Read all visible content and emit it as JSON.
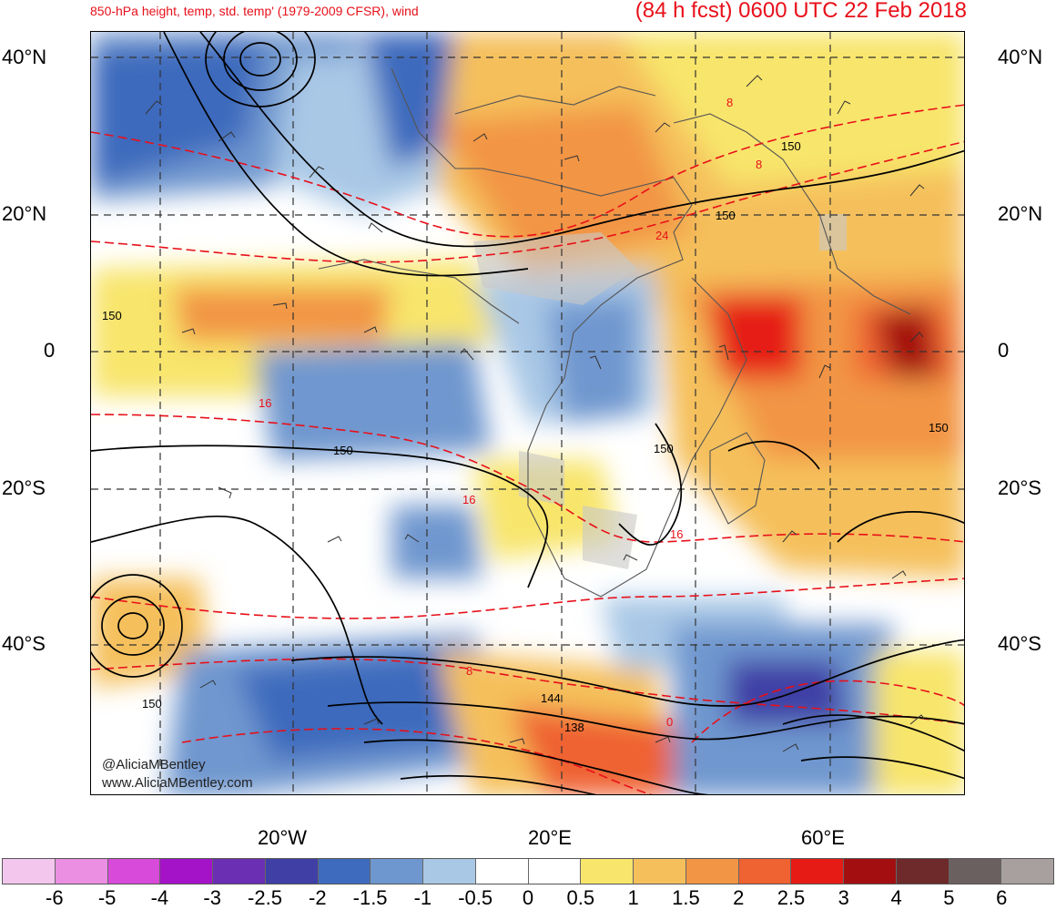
{
  "header": {
    "title_left": "850-hPa height, temp, std. temp' (1979-2009 CFSR), wind",
    "title_right": "(84 h fcst) 0600 UTC 22 Feb 2018"
  },
  "axes": {
    "lat_left": [
      "40°N",
      "20°N",
      "0",
      "20°S",
      "40°S"
    ],
    "lat_right": [
      "40°N",
      "20°N",
      "0",
      "20°S",
      "40°S"
    ],
    "lon_bottom": [
      "20°W",
      "20°E",
      "60°E"
    ]
  },
  "contour_labels": {
    "height": [
      "150",
      "150",
      "150",
      "150",
      "150",
      "150",
      "150",
      "144",
      "138"
    ],
    "temp": [
      "8",
      "8",
      "24",
      "16",
      "16",
      "16",
      "8",
      "0"
    ]
  },
  "credits": {
    "twitter": "@AliciaMBentley",
    "website": "www.AliciaMBentley.com"
  },
  "colorbar": {
    "labels": [
      "-6",
      "-5",
      "-4",
      "-3",
      "-2.5",
      "-2",
      "-1.5",
      "-1",
      "-0.5",
      "0",
      "0.5",
      "1",
      "1.5",
      "2",
      "2.5",
      "3",
      "4",
      "5",
      "6"
    ],
    "colors": [
      "#f3c6ee",
      "#ea8fe2",
      "#d84ad9",
      "#a513c8",
      "#6a2fb3",
      "#3f3fa6",
      "#3e6bbd",
      "#6f97cf",
      "#a9c8e6",
      "#ffffff",
      "#ffffff",
      "#f8e56c",
      "#f5c05c",
      "#f29545",
      "#ef6231",
      "#e61b16",
      "#a30f10",
      "#6e2a2a",
      "#6a6060",
      "#a89f9f"
    ]
  },
  "colors": {
    "title": "#e8101a",
    "height_contour": "#000000",
    "temp_contour": "#e8101a",
    "grid": "#333333",
    "land": "#c8c8c8"
  }
}
